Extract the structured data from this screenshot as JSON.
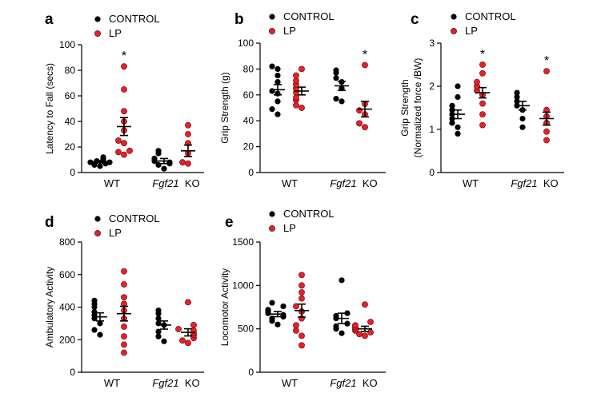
{
  "colors": {
    "control": "#000000",
    "lp": "#e8202a"
  },
  "legend": {
    "control_label": "CONTROL",
    "lp_label": "LP"
  },
  "chart_data": [
    {
      "type": "scatter",
      "panel": "a",
      "ylabel": "Latency to Fall (secs)",
      "ylim": [
        0,
        100
      ],
      "yticks": [
        "0",
        "20",
        "40",
        "60",
        "80",
        "100"
      ],
      "groups": [
        {
          "label": "WT",
          "italic": false
        },
        {
          "label": "Fgf21",
          "italic": true,
          "suffix": "KO"
        }
      ],
      "series": [
        {
          "name": "CONTROL",
          "group": 0,
          "values": [
            5,
            6,
            7,
            8,
            8,
            9,
            9,
            10,
            11,
            12
          ],
          "mean": 8.5,
          "sem": 0.8
        },
        {
          "name": "LP",
          "group": 0,
          "values": [
            14,
            16,
            17,
            23,
            25,
            33,
            40,
            48,
            65,
            83
          ],
          "mean": 36,
          "sem": 7,
          "star": "*"
        },
        {
          "name": "CONTROL",
          "group": 1,
          "values": [
            3,
            6,
            7,
            8,
            9,
            11,
            15,
            17
          ],
          "mean": 9,
          "sem": 2
        },
        {
          "name": "LP",
          "group": 1,
          "values": [
            7,
            8,
            15,
            23,
            30,
            37
          ],
          "mean": 17,
          "sem": 4.5
        }
      ]
    },
    {
      "type": "scatter",
      "panel": "b",
      "ylabel": "Grip Strength (g)",
      "ylim": [
        0,
        100
      ],
      "yticks": [
        "0",
        "20",
        "40",
        "60",
        "80",
        "100"
      ],
      "groups": [
        {
          "label": "WT",
          "italic": false
        },
        {
          "label": "Fgf21",
          "italic": true,
          "suffix": "KO"
        }
      ],
      "series": [
        {
          "name": "CONTROL",
          "group": 0,
          "values": [
            45,
            49,
            55,
            61,
            63,
            70,
            75,
            80,
            82
          ],
          "mean": 64,
          "sem": 4
        },
        {
          "name": "LP",
          "group": 0,
          "values": [
            50,
            52,
            56,
            58,
            62,
            65,
            68,
            71,
            75,
            80
          ],
          "mean": 63,
          "sem": 3
        },
        {
          "name": "CONTROL",
          "group": 1,
          "values": [
            55,
            57,
            65,
            70,
            73,
            77,
            79
          ],
          "mean": 67,
          "sem": 3.5
        },
        {
          "name": "LP",
          "group": 1,
          "values": [
            35,
            38,
            45,
            48,
            53,
            83
          ],
          "mean": 49,
          "sem": 6,
          "star": "*"
        }
      ]
    },
    {
      "type": "scatter",
      "panel": "c",
      "ylabel": "Grip Strength",
      "ylabel2": "(Normalized force /BW)",
      "ylim": [
        0,
        3
      ],
      "yticks": [
        "0",
        "1",
        "2",
        "3"
      ],
      "groups": [
        {
          "label": "WT",
          "italic": false
        },
        {
          "label": "Fgf21",
          "italic": true,
          "suffix": "KO"
        }
      ],
      "series": [
        {
          "name": "CONTROL",
          "group": 0,
          "values": [
            0.9,
            1.05,
            1.15,
            1.25,
            1.35,
            1.45,
            1.55,
            1.75,
            2.0
          ],
          "mean": 1.35,
          "sem": 0.1
        },
        {
          "name": "LP",
          "group": 0,
          "values": [
            1.1,
            1.35,
            1.6,
            1.8,
            1.9,
            2.0,
            2.1,
            2.3,
            2.5
          ],
          "mean": 1.85,
          "sem": 0.12,
          "star": "*"
        },
        {
          "name": "CONTROL",
          "group": 1,
          "values": [
            1.05,
            1.25,
            1.45,
            1.55,
            1.65,
            1.75,
            1.85
          ],
          "mean": 1.55,
          "sem": 0.1
        },
        {
          "name": "LP",
          "group": 1,
          "values": [
            0.75,
            0.95,
            1.15,
            1.3,
            1.45,
            2.35
          ],
          "mean": 1.25,
          "sem": 0.15,
          "star": "*"
        }
      ]
    },
    {
      "type": "scatter",
      "panel": "d",
      "ylabel": "Ambulatory Activity",
      "ylim": [
        0,
        800
      ],
      "yticks": [
        "0",
        "200",
        "400",
        "600",
        "800"
      ],
      "groups": [
        {
          "label": "WT",
          "italic": false
        },
        {
          "label": "Fgf21",
          "italic": true,
          "suffix": "KO"
        }
      ],
      "series": [
        {
          "name": "CONTROL",
          "group": 0,
          "values": [
            230,
            260,
            300,
            330,
            350,
            370,
            400,
            420,
            440
          ],
          "mean": 340,
          "sem": 25
        },
        {
          "name": "LP",
          "group": 0,
          "values": [
            120,
            170,
            220,
            280,
            330,
            380,
            420,
            460,
            540,
            620
          ],
          "mean": 360,
          "sem": 45
        },
        {
          "name": "CONTROL",
          "group": 1,
          "values": [
            190,
            220,
            250,
            290,
            300,
            330,
            360,
            380
          ],
          "mean": 290,
          "sem": 25
        },
        {
          "name": "LP",
          "group": 1,
          "values": [
            180,
            195,
            210,
            230,
            240,
            255,
            265,
            290,
            430
          ],
          "mean": 245,
          "sem": 22
        }
      ]
    },
    {
      "type": "scatter",
      "panel": "e",
      "ylabel": "Locomotor Activity",
      "ylim": [
        0,
        1500
      ],
      "yticks": [
        "0",
        "500",
        "1000",
        "1500"
      ],
      "groups": [
        {
          "label": "WT",
          "italic": false
        },
        {
          "label": "Fgf21",
          "italic": true,
          "suffix": "KO"
        }
      ],
      "series": [
        {
          "name": "CONTROL",
          "group": 0,
          "values": [
            550,
            590,
            620,
            640,
            660,
            680,
            700,
            720,
            760,
            800
          ],
          "mean": 670,
          "sem": 30
        },
        {
          "name": "LP",
          "group": 0,
          "values": [
            310,
            420,
            480,
            540,
            620,
            700,
            760,
            850,
            920,
            1000,
            1120
          ],
          "mean": 710,
          "sem": 75
        },
        {
          "name": "CONTROL",
          "group": 1,
          "values": [
            450,
            500,
            530,
            560,
            620,
            650,
            680,
            1060
          ],
          "mean": 620,
          "sem": 60
        },
        {
          "name": "LP",
          "group": 1,
          "values": [
            420,
            440,
            460,
            480,
            500,
            520,
            540,
            580,
            780
          ],
          "mean": 500,
          "sem": 30
        }
      ]
    }
  ]
}
